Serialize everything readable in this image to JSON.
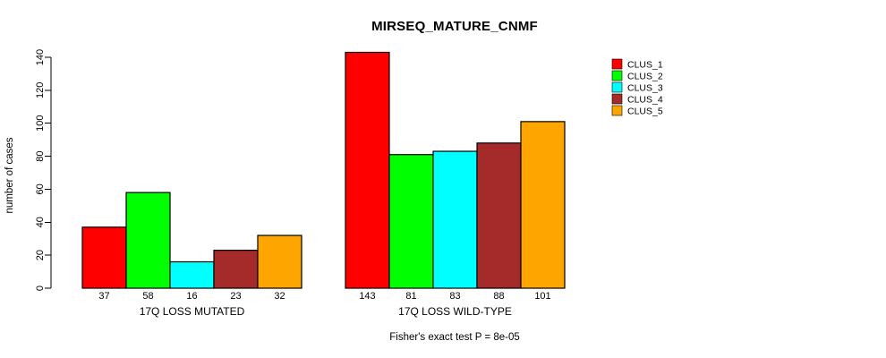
{
  "title": "MIRSEQ_MATURE_CNMF",
  "ylabel": "number of cases",
  "footer": "Fisher's exact test P = 8e-05",
  "chart_data": {
    "type": "bar",
    "title": "MIRSEQ_MATURE_CNMF",
    "xlabel": "",
    "ylabel": "number of cases",
    "subtitle": "Fisher's exact test P = 8e-05",
    "groups": [
      {
        "label": "17Q LOSS MUTATED",
        "values": [
          37,
          58,
          16,
          23,
          32
        ]
      },
      {
        "label": "17Q LOSS WILD-TYPE",
        "values": [
          143,
          81,
          83,
          88,
          101
        ]
      }
    ],
    "series_names": [
      "CLUS_1",
      "CLUS_2",
      "CLUS_3",
      "CLUS_4",
      "CLUS_5"
    ],
    "colors": [
      "#FF0000",
      "#00FF00",
      "#00FFFF",
      "#A52A2A",
      "#FFA500"
    ],
    "ylim": [
      0,
      140
    ],
    "yticks": [
      0,
      20,
      40,
      60,
      80,
      100,
      120,
      140
    ],
    "grid": false,
    "legend_position": "right",
    "bar_value_labels_shown": true
  },
  "legend": {
    "items": [
      {
        "label": "CLUS_1",
        "color": "#FF0000"
      },
      {
        "label": "CLUS_2",
        "color": "#00FF00"
      },
      {
        "label": "CLUS_3",
        "color": "#00FFFF"
      },
      {
        "label": "CLUS_4",
        "color": "#A52A2A"
      },
      {
        "label": "CLUS_5",
        "color": "#FFA500"
      }
    ]
  }
}
